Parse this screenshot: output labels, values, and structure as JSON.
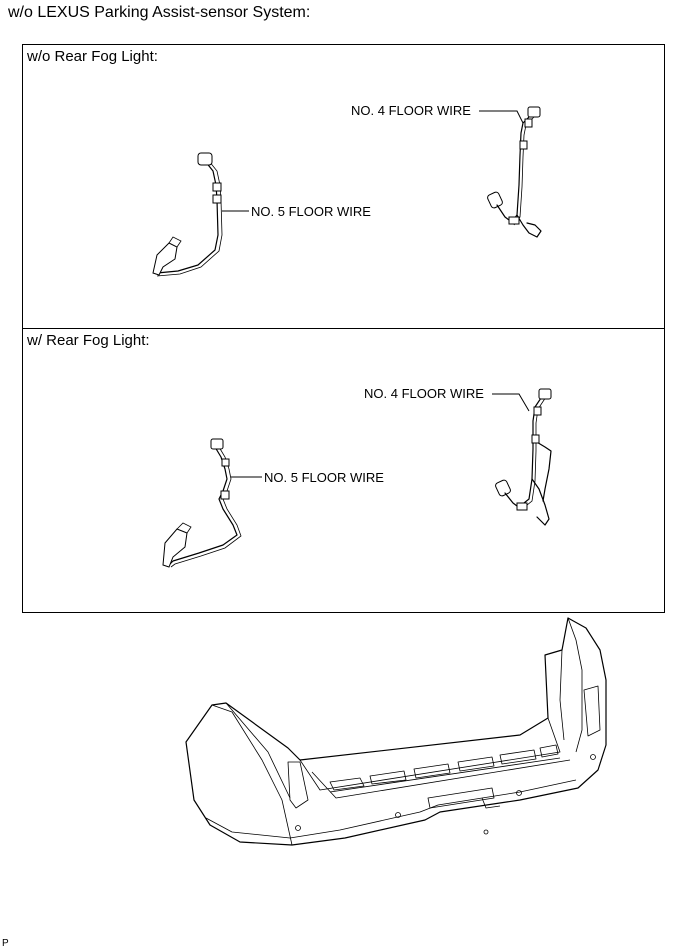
{
  "title": "w/o LEXUS Parking Assist-sensor System:",
  "panels": [
    {
      "label": "w/o Rear Fog Light:",
      "callouts": {
        "no4": "NO. 4 FLOOR WIRE",
        "no5": "NO. 5 FLOOR WIRE"
      }
    },
    {
      "label": "w/ Rear Fog Light:",
      "callouts": {
        "no4": "NO. 4 FLOOR WIRE",
        "no5": "NO. 5 FLOOR WIRE"
      }
    }
  ],
  "footer": "P",
  "icons": [
    "wire-harness-icon",
    "connector-icon",
    "rear-bumper-icon"
  ]
}
